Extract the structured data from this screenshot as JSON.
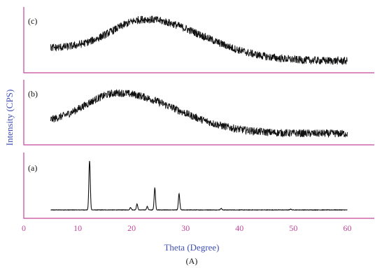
{
  "colors": {
    "axis": "#c0479a",
    "tick_text": "#c0479a",
    "axis_title": "#3f4fb5",
    "trace": "#111111"
  },
  "chart_data": {
    "type": "line",
    "xlabel": "Theta (Degree)",
    "ylabel": "Intensity (CPS)",
    "caption": "(A)",
    "xlim": [
      0,
      65
    ],
    "xticks": [
      "0",
      "10",
      "20",
      "30",
      "40",
      "50",
      "60"
    ],
    "x_range_measured": [
      5,
      60
    ],
    "grid": false,
    "panels": [
      {
        "label": "(a)",
        "shape": "crystalline",
        "peaks": [
          {
            "x": 12.2,
            "y": 1.0
          },
          {
            "x": 19.8,
            "y": 0.05
          },
          {
            "x": 21.0,
            "y": 0.12
          },
          {
            "x": 22.9,
            "y": 0.07
          },
          {
            "x": 24.3,
            "y": 0.45
          },
          {
            "x": 28.8,
            "y": 0.33
          },
          {
            "x": 36.6,
            "y": 0.03
          },
          {
            "x": 49.5,
            "y": 0.015
          }
        ]
      },
      {
        "label": "(b)",
        "shape": "amorphous",
        "halo_center": 17.5,
        "halo_max": 0.9,
        "start_level": 0.28,
        "end_level": 0.06
      },
      {
        "label": "(c)",
        "shape": "amorphous",
        "halo_center": 22.5,
        "halo_max": 0.92,
        "start_level": 0.33,
        "end_level": 0.07
      }
    ]
  }
}
